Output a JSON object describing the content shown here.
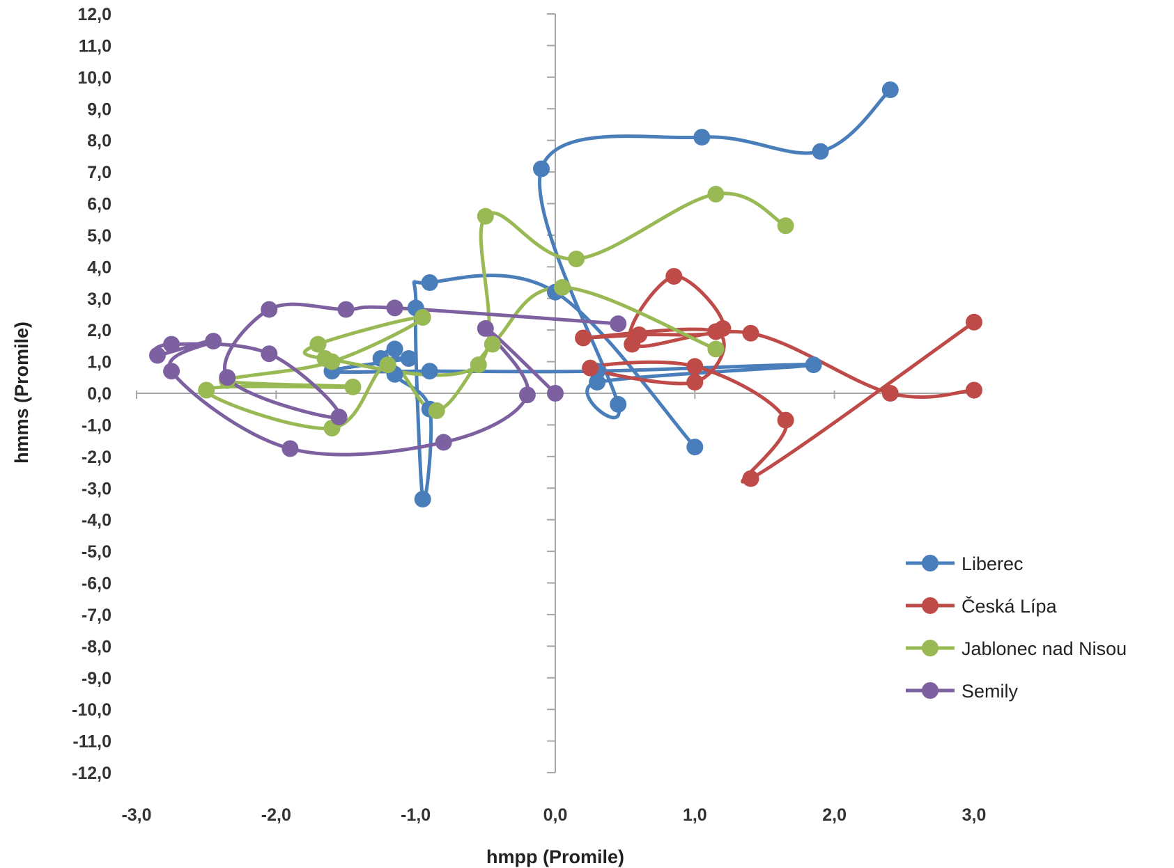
{
  "chart_data": {
    "type": "scatter",
    "title": "",
    "xlabel": "hmpp (Promile)",
    "ylabel": "hmms (Promile)",
    "xlim": [
      -3.0,
      3.0
    ],
    "ylim": [
      -12.0,
      12.0
    ],
    "x_ticks": [
      "-3,0",
      "-2,0",
      "-1,0",
      "0,0",
      "1,0",
      "2,0",
      "3,0"
    ],
    "y_ticks": [
      "12,0",
      "11,0",
      "10,0",
      "9,0",
      "8,0",
      "7,0",
      "6,0",
      "5,0",
      "4,0",
      "3,0",
      "2,0",
      "1,0",
      "0,0",
      "-1,0",
      "-2,0",
      "-3,0",
      "-4,0",
      "-5,0",
      "-6,0",
      "-7,0",
      "-8,0",
      "-9,0",
      "-10,0",
      "-11,0",
      "-12,0"
    ],
    "grid": false,
    "legend_position": "bottom-right",
    "smooth_lines": true,
    "series": [
      {
        "name": "Liberec",
        "color": "#4a7ebb",
        "points": [
          [
            1.0,
            -1.7
          ],
          [
            0.0,
            3.2
          ],
          [
            -0.9,
            3.5
          ],
          [
            -1.0,
            2.7
          ],
          [
            -0.95,
            -3.35
          ],
          [
            -0.9,
            -0.5
          ],
          [
            -1.15,
            0.6
          ],
          [
            -1.15,
            1.4
          ],
          [
            -1.25,
            1.1
          ],
          [
            -1.05,
            1.1
          ],
          [
            -1.6,
            0.7
          ],
          [
            -0.9,
            0.7
          ],
          [
            0.3,
            0.7
          ],
          [
            1.85,
            0.9
          ],
          [
            0.3,
            0.35
          ],
          [
            0.45,
            -0.35
          ],
          [
            -0.1,
            7.1
          ],
          [
            1.05,
            8.1
          ],
          [
            1.9,
            7.65
          ],
          [
            2.4,
            9.6
          ]
        ]
      },
      {
        "name": "Česká Lípa",
        "color": "#be4b48",
        "points": [
          [
            3.0,
            0.1
          ],
          [
            2.4,
            0.0
          ],
          [
            1.4,
            1.9
          ],
          [
            0.55,
            1.55
          ],
          [
            0.85,
            3.7
          ],
          [
            1.2,
            2.05
          ],
          [
            0.6,
            1.85
          ],
          [
            0.2,
            1.75
          ],
          [
            1.15,
            1.95
          ],
          [
            1.0,
            0.35
          ],
          [
            0.25,
            0.8
          ],
          [
            1.0,
            0.85
          ],
          [
            1.65,
            -0.85
          ],
          [
            1.4,
            -2.7
          ],
          [
            3.0,
            2.25
          ]
        ]
      },
      {
        "name": "Jablonec nad Nisou",
        "color": "#98b954",
        "points": [
          [
            1.65,
            5.3
          ],
          [
            1.15,
            6.3
          ],
          [
            0.15,
            4.25
          ],
          [
            -0.5,
            5.6
          ],
          [
            -0.55,
            0.9
          ],
          [
            -1.65,
            1.1
          ],
          [
            -1.7,
            1.55
          ],
          [
            -0.95,
            2.4
          ],
          [
            -1.6,
            1.0
          ],
          [
            -2.35,
            0.4
          ],
          [
            -1.45,
            0.2
          ],
          [
            -2.5,
            0.1
          ],
          [
            -1.6,
            -1.1
          ],
          [
            -1.2,
            0.9
          ],
          [
            -0.85,
            -0.55
          ],
          [
            -0.45,
            1.55
          ],
          [
            0.05,
            3.35
          ],
          [
            1.15,
            1.4
          ]
        ]
      },
      {
        "name": "Semily",
        "color": "#7d60a0",
        "points": [
          [
            0.45,
            2.2
          ],
          [
            -1.15,
            2.7
          ],
          [
            -1.5,
            2.65
          ],
          [
            -2.05,
            2.65
          ],
          [
            -2.35,
            0.5
          ],
          [
            -1.55,
            -0.75
          ],
          [
            -2.05,
            1.25
          ],
          [
            -2.75,
            1.55
          ],
          [
            -2.85,
            1.2
          ],
          [
            -2.45,
            1.65
          ],
          [
            -2.75,
            0.7
          ],
          [
            -1.9,
            -1.75
          ],
          [
            -0.8,
            -1.55
          ],
          [
            -0.2,
            -0.05
          ],
          [
            -0.5,
            2.05
          ],
          [
            0.0,
            0.0
          ]
        ]
      }
    ]
  }
}
